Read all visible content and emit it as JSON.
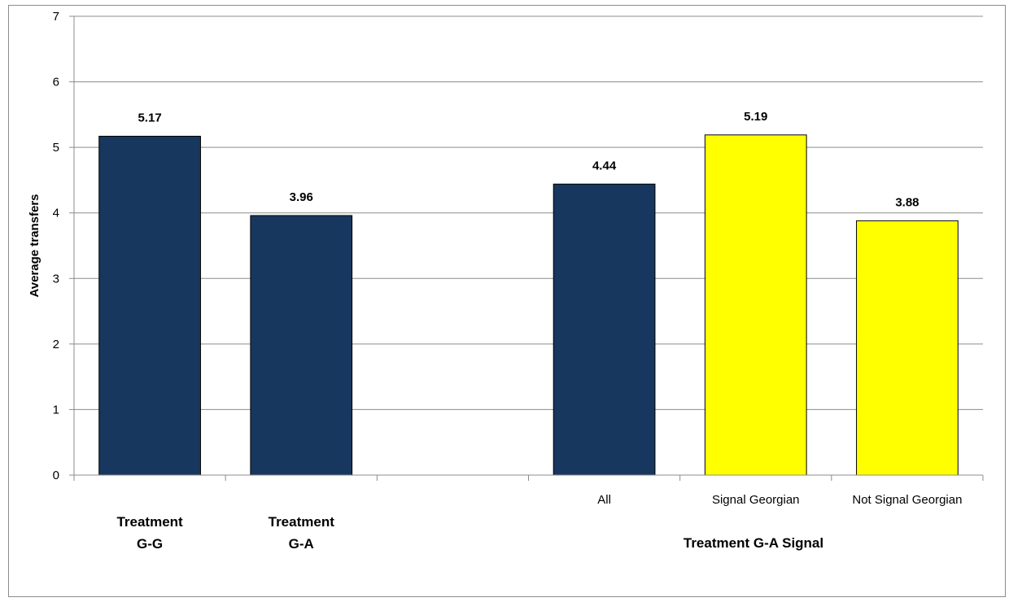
{
  "chart_data": {
    "type": "bar",
    "title": "",
    "ylabel": "Average transfers",
    "ylim": [
      0,
      7
    ],
    "yticks": [
      "0",
      "1",
      "2",
      "3",
      "4",
      "5",
      "6",
      "7"
    ],
    "grid": true,
    "bars": [
      {
        "label_lines": [
          "Treatment",
          "G-G"
        ],
        "value": 5.17,
        "value_label": "5.17",
        "color": "#17375e"
      },
      {
        "label_lines": [
          "Treatment",
          "G-A"
        ],
        "value": 3.96,
        "value_label": "3.96",
        "color": "#17375e"
      },
      {
        "label_lines": [],
        "value": null,
        "value_label": "",
        "color": ""
      },
      {
        "label_lines": [
          "All"
        ],
        "value": 4.44,
        "value_label": "4.44",
        "color": "#17375e"
      },
      {
        "label_lines": [
          "Signal Georgian"
        ],
        "value": 5.19,
        "value_label": "5.19",
        "color": "#ffff00"
      },
      {
        "label_lines": [
          "Not Signal Georgian"
        ],
        "value": 3.88,
        "value_label": "3.88",
        "color": "#ffff00"
      }
    ],
    "group_label": "Treatment G-A Signal",
    "colors": {
      "treatment": "#17375e",
      "signal": "#ffff00"
    }
  }
}
